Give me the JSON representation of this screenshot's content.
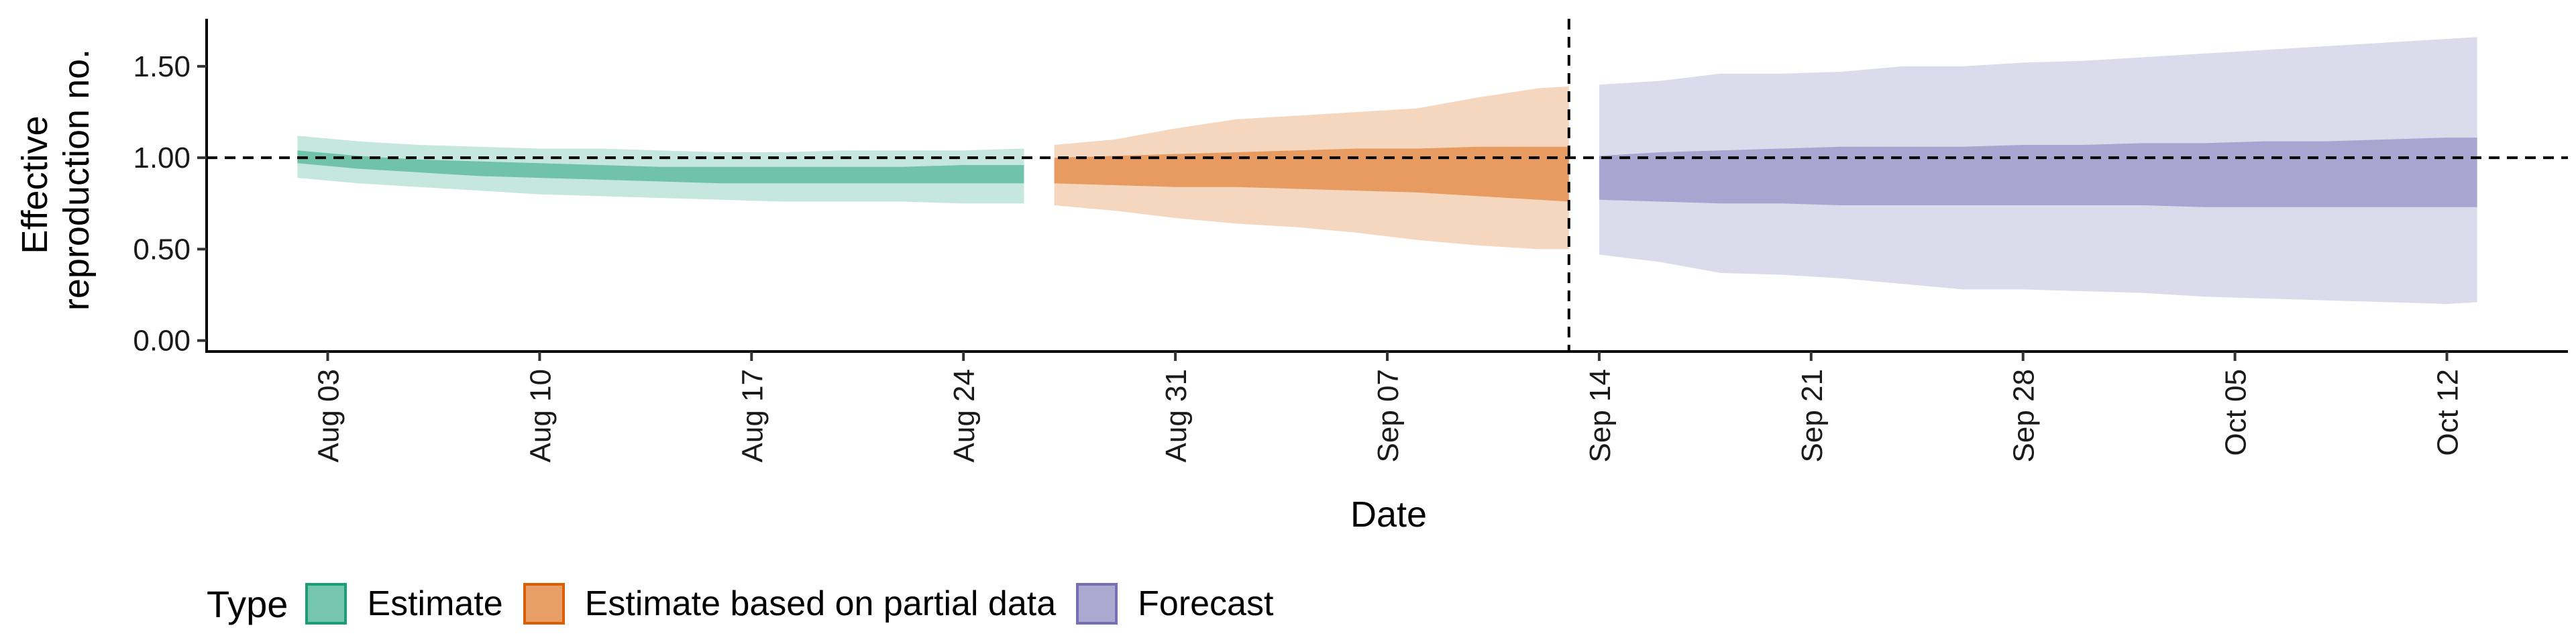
{
  "chart_data": {
    "type": "area",
    "xlabel": "Date",
    "ylabel_lines": [
      "Effective",
      "reproduction no."
    ],
    "ylim": [
      -0.06,
      1.76
    ],
    "xlim": [
      "2021-07-30",
      "2021-10-16"
    ],
    "yticks": [
      0,
      0.5,
      1.0,
      1.5
    ],
    "ytick_labels": [
      "0.00",
      "0.50",
      "1.00",
      "1.50"
    ],
    "xticks": [
      "2021-08-03",
      "2021-08-10",
      "2021-08-17",
      "2021-08-24",
      "2021-08-31",
      "2021-09-07",
      "2021-09-14",
      "2021-09-21",
      "2021-09-28",
      "2021-10-05",
      "2021-10-12"
    ],
    "xtick_labels": [
      "Aug 03",
      "Aug 10",
      "Aug 17",
      "Aug 24",
      "Aug 31",
      "Sep 07",
      "Sep 14",
      "Sep 21",
      "Sep 28",
      "Oct 05",
      "Oct 12"
    ],
    "reference_lines": {
      "horizontal_y": 1.0,
      "vertical_x": "2021-09-13"
    },
    "legend": {
      "title": "Type",
      "position": "bottom-left"
    },
    "series": [
      {
        "name": "Estimate",
        "fill_color": "#1b9e77",
        "border_color": "#1b9e77",
        "x": [
          "2021-08-02",
          "2021-08-04",
          "2021-08-06",
          "2021-08-08",
          "2021-08-10",
          "2021-08-12",
          "2021-08-14",
          "2021-08-16",
          "2021-08-18",
          "2021-08-20",
          "2021-08-22",
          "2021-08-24",
          "2021-08-26"
        ],
        "lower_90": [
          0.89,
          0.86,
          0.84,
          0.82,
          0.8,
          0.79,
          0.78,
          0.77,
          0.76,
          0.76,
          0.76,
          0.75,
          0.75
        ],
        "upper_90": [
          1.12,
          1.09,
          1.07,
          1.06,
          1.05,
          1.05,
          1.04,
          1.03,
          1.03,
          1.04,
          1.04,
          1.04,
          1.05
        ],
        "lower_50": [
          0.97,
          0.94,
          0.92,
          0.9,
          0.89,
          0.88,
          0.87,
          0.86,
          0.86,
          0.86,
          0.86,
          0.86,
          0.86
        ],
        "upper_50": [
          1.04,
          1.01,
          0.99,
          0.98,
          0.97,
          0.96,
          0.95,
          0.95,
          0.95,
          0.95,
          0.95,
          0.96,
          0.96
        ]
      },
      {
        "name": "Estimate based on partial data",
        "fill_color": "#d95f02",
        "border_color": "#d95f02",
        "x": [
          "2021-08-27",
          "2021-08-29",
          "2021-08-31",
          "2021-09-02",
          "2021-09-04",
          "2021-09-06",
          "2021-09-08",
          "2021-09-10",
          "2021-09-12",
          "2021-09-13"
        ],
        "lower_90": [
          0.74,
          0.71,
          0.67,
          0.64,
          0.62,
          0.59,
          0.55,
          0.52,
          0.5,
          0.5
        ],
        "upper_90": [
          1.07,
          1.1,
          1.16,
          1.21,
          1.23,
          1.25,
          1.27,
          1.33,
          1.38,
          1.39
        ],
        "lower_50": [
          0.86,
          0.85,
          0.84,
          0.84,
          0.83,
          0.82,
          0.81,
          0.79,
          0.77,
          0.76
        ],
        "upper_50": [
          1.0,
          1.01,
          1.02,
          1.03,
          1.04,
          1.05,
          1.05,
          1.06,
          1.06,
          1.06
        ]
      },
      {
        "name": "Forecast",
        "fill_color": "#7570b3",
        "border_color": "#7570b3",
        "x": [
          "2021-09-14",
          "2021-09-16",
          "2021-09-18",
          "2021-09-20",
          "2021-09-22",
          "2021-09-24",
          "2021-09-26",
          "2021-09-28",
          "2021-09-30",
          "2021-10-02",
          "2021-10-04",
          "2021-10-06",
          "2021-10-08",
          "2021-10-10",
          "2021-10-12",
          "2021-10-13"
        ],
        "lower_90": [
          0.47,
          0.43,
          0.37,
          0.36,
          0.34,
          0.31,
          0.28,
          0.28,
          0.27,
          0.26,
          0.24,
          0.23,
          0.22,
          0.21,
          0.2,
          0.21
        ],
        "upper_90": [
          1.4,
          1.42,
          1.46,
          1.46,
          1.47,
          1.5,
          1.5,
          1.52,
          1.53,
          1.55,
          1.57,
          1.59,
          1.61,
          1.63,
          1.65,
          1.66
        ],
        "lower_50": [
          0.77,
          0.76,
          0.75,
          0.75,
          0.74,
          0.74,
          0.74,
          0.74,
          0.74,
          0.74,
          0.73,
          0.73,
          0.73,
          0.73,
          0.73,
          0.73
        ],
        "upper_50": [
          1.01,
          1.03,
          1.04,
          1.05,
          1.06,
          1.06,
          1.06,
          1.07,
          1.07,
          1.08,
          1.08,
          1.09,
          1.09,
          1.1,
          1.11,
          1.11
        ]
      }
    ]
  }
}
